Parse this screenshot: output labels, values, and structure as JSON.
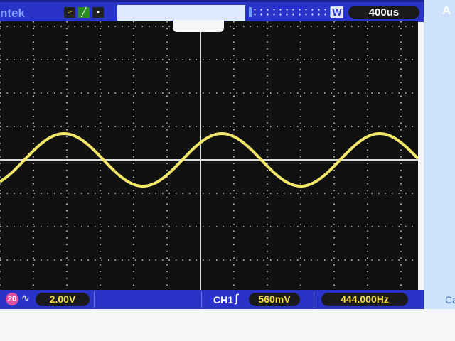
{
  "header": {
    "brand": "ntek",
    "timebase": "400us",
    "right_label": "A",
    "icons": [
      "waveform-icon",
      "trigger-edge-icon",
      "run-stop-icon"
    ],
    "w_label": "W"
  },
  "footer": {
    "probe": "20",
    "ch_volts": "2.00V",
    "trigger_channel": "CH1",
    "trigger_level": "560mV",
    "frequency": "444.000Hz",
    "right_label": "Ca"
  },
  "colors": {
    "trace": "#f3e86a",
    "screen": "#111111",
    "bar": "#2a33c8",
    "text_yellow": "#f3e040"
  }
}
